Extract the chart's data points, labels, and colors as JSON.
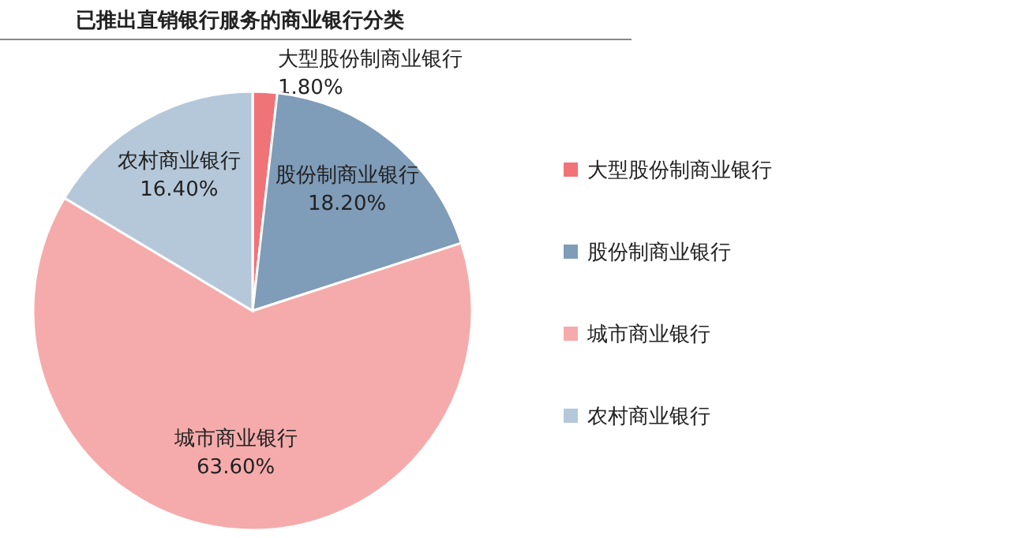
{
  "chart_data": {
    "type": "pie",
    "title": "已推出直销银行服务的商业银行分类",
    "categories": [
      "大型股份制商业银行",
      "股份制商业银行",
      "城市商业银行",
      "农村商业银行"
    ],
    "values": [
      1.8,
      18.2,
      63.6,
      16.4
    ],
    "colors": [
      "#f07378",
      "#7f9cb8",
      "#f5abab",
      "#b5c8da"
    ],
    "value_labels": [
      "1.80%",
      "18.20%",
      "63.60%",
      "16.40%"
    ],
    "legend": "right"
  }
}
